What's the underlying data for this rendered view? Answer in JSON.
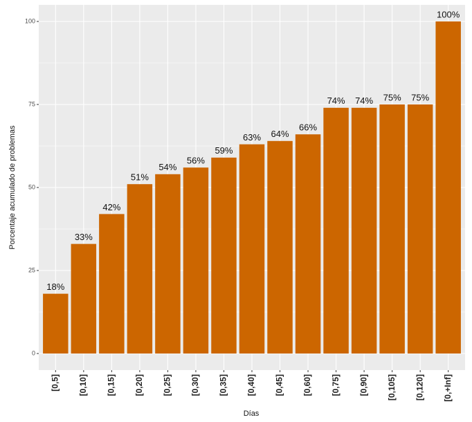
{
  "chart_data": {
    "type": "bar",
    "x_label": "Días",
    "y_label": "Porcentaje acumulado de problemas",
    "categories": [
      "[0,5]",
      "[0,10]",
      "[0,15]",
      "[0,20]",
      "[0,25]",
      "[0,30]",
      "[0,35]",
      "[0,40]",
      "[0,45]",
      "[0,60]",
      "[0,75]",
      "[0,90]",
      "[0,105]",
      "[0,120]",
      "[0,+Inf]"
    ],
    "values": [
      18,
      33,
      42,
      51,
      54,
      56,
      59,
      63,
      64,
      66,
      74,
      74,
      75,
      75,
      100
    ],
    "value_labels": [
      "18%",
      "33%",
      "42%",
      "51%",
      "54%",
      "56%",
      "59%",
      "63%",
      "64%",
      "66%",
      "74%",
      "74%",
      "75%",
      "75%",
      "100%"
    ],
    "color": "#cc6600",
    "ylim": [
      -5,
      105
    ],
    "yticks": [
      0,
      25,
      50,
      75,
      100
    ],
    "grid": true
  }
}
